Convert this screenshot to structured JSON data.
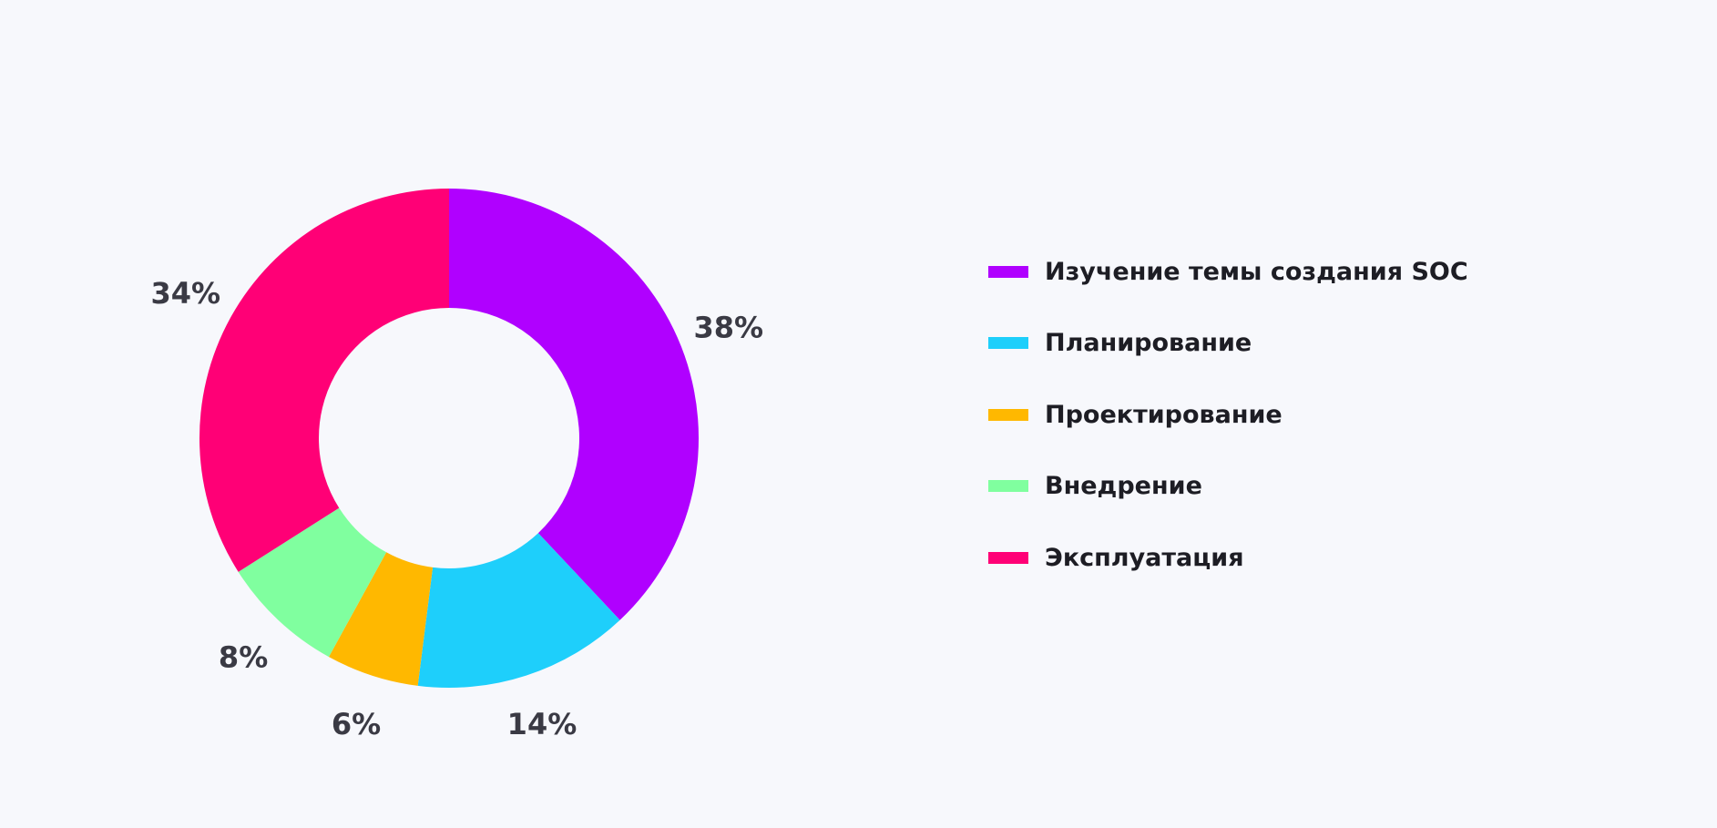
{
  "chart_data": {
    "type": "pie",
    "variant": "donut",
    "categories": [
      "Изучение темы создания SOC",
      "Планирование",
      "Проектирование",
      "Внедрение",
      "Эксплуатация"
    ],
    "values": [
      38,
      14,
      6,
      8,
      34
    ],
    "value_labels": [
      "38%",
      "14%",
      "6%",
      "8%",
      "34%"
    ],
    "colors": [
      "#b000ff",
      "#1ecffb",
      "#ffb800",
      "#80ff9f",
      "#ff0076"
    ],
    "title": "",
    "legend_position": "right",
    "start_angle": "top, clockwise"
  }
}
